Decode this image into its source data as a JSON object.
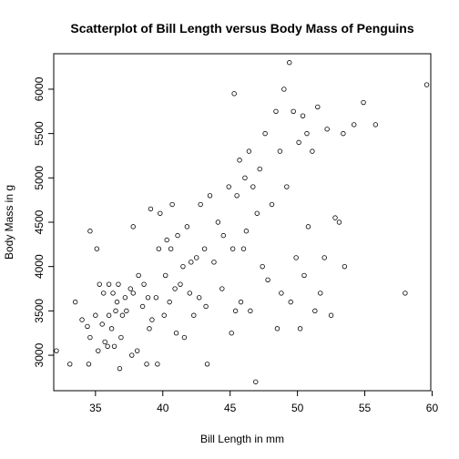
{
  "chart_data": {
    "type": "scatter",
    "title": "Scatterplot of Bill Length versus Body Mass of Penguins",
    "xlabel": "Bill Length in mm",
    "ylabel": "Body Mass in g",
    "xlim": [
      31.9,
      59.9
    ],
    "ylim": [
      2600,
      6400
    ],
    "xticks": [
      35,
      40,
      45,
      50,
      55,
      60
    ],
    "yticks": [
      3000,
      3500,
      4000,
      4500,
      5000,
      5500,
      6000
    ],
    "grid": false,
    "legend": "none",
    "point_color": "#000000",
    "points": [
      [
        32.1,
        3050
      ],
      [
        33.1,
        2900
      ],
      [
        33.5,
        3600
      ],
      [
        34.0,
        3400
      ],
      [
        34.4,
        3325
      ],
      [
        34.5,
        2900
      ],
      [
        34.6,
        3200
      ],
      [
        34.6,
        4400
      ],
      [
        35.0,
        3450
      ],
      [
        35.1,
        4200
      ],
      [
        35.2,
        3050
      ],
      [
        35.3,
        3800
      ],
      [
        35.5,
        3350
      ],
      [
        35.6,
        3700
      ],
      [
        35.7,
        3150
      ],
      [
        35.9,
        3100
      ],
      [
        36.0,
        3450
      ],
      [
        36.0,
        3800
      ],
      [
        36.2,
        3300
      ],
      [
        36.3,
        3700
      ],
      [
        36.4,
        3100
      ],
      [
        36.5,
        3500
      ],
      [
        36.6,
        3600
      ],
      [
        36.7,
        3800
      ],
      [
        36.8,
        2850
      ],
      [
        36.9,
        3200
      ],
      [
        37.0,
        3450
      ],
      [
        37.2,
        3650
      ],
      [
        37.3,
        3500
      ],
      [
        37.6,
        3750
      ],
      [
        37.7,
        3000
      ],
      [
        37.8,
        3700
      ],
      [
        37.8,
        4450
      ],
      [
        38.1,
        3050
      ],
      [
        38.2,
        3900
      ],
      [
        38.5,
        3550
      ],
      [
        38.6,
        3800
      ],
      [
        38.8,
        2900
      ],
      [
        38.9,
        3650
      ],
      [
        39.0,
        3300
      ],
      [
        39.1,
        4650
      ],
      [
        39.2,
        3400
      ],
      [
        39.5,
        3650
      ],
      [
        39.6,
        2900
      ],
      [
        39.7,
        4200
      ],
      [
        39.8,
        4600
      ],
      [
        40.1,
        3450
      ],
      [
        40.2,
        3900
      ],
      [
        40.3,
        4300
      ],
      [
        40.5,
        3600
      ],
      [
        40.6,
        4200
      ],
      [
        40.7,
        4700
      ],
      [
        40.9,
        3750
      ],
      [
        41.0,
        3250
      ],
      [
        41.1,
        4350
      ],
      [
        41.3,
        3800
      ],
      [
        41.5,
        4000
      ],
      [
        41.6,
        3200
      ],
      [
        41.8,
        4450
      ],
      [
        42.0,
        3700
      ],
      [
        42.1,
        4050
      ],
      [
        42.3,
        3450
      ],
      [
        42.5,
        4100
      ],
      [
        42.7,
        3650
      ],
      [
        42.8,
        4700
      ],
      [
        43.1,
        4200
      ],
      [
        43.2,
        3550
      ],
      [
        43.3,
        2900
      ],
      [
        43.5,
        4800
      ],
      [
        43.8,
        4050
      ],
      [
        44.1,
        4500
      ],
      [
        44.4,
        3750
      ],
      [
        44.5,
        4350
      ],
      [
        44.9,
        4900
      ],
      [
        45.1,
        3250
      ],
      [
        45.2,
        4200
      ],
      [
        45.3,
        5950
      ],
      [
        45.4,
        3500
      ],
      [
        45.5,
        4800
      ],
      [
        45.7,
        5200
      ],
      [
        45.8,
        3600
      ],
      [
        46.0,
        4200
      ],
      [
        46.1,
        5000
      ],
      [
        46.2,
        4400
      ],
      [
        46.4,
        5300
      ],
      [
        46.5,
        3500
      ],
      [
        46.7,
        4900
      ],
      [
        46.9,
        2700
      ],
      [
        47.0,
        4600
      ],
      [
        47.2,
        5100
      ],
      [
        47.4,
        4000
      ],
      [
        47.6,
        5500
      ],
      [
        47.8,
        3850
      ],
      [
        48.1,
        4700
      ],
      [
        48.4,
        5750
      ],
      [
        48.5,
        3300
      ],
      [
        48.7,
        5300
      ],
      [
        48.8,
        3700
      ],
      [
        49.0,
        6000
      ],
      [
        49.2,
        4900
      ],
      [
        49.4,
        6300
      ],
      [
        49.5,
        3600
      ],
      [
        49.7,
        5750
      ],
      [
        49.9,
        4100
      ],
      [
        50.1,
        5400
      ],
      [
        50.2,
        3300
      ],
      [
        50.4,
        5700
      ],
      [
        50.5,
        3900
      ],
      [
        50.7,
        5500
      ],
      [
        50.8,
        4450
      ],
      [
        51.1,
        5300
      ],
      [
        51.3,
        3500
      ],
      [
        51.5,
        5800
      ],
      [
        51.7,
        3700
      ],
      [
        52.0,
        4100
      ],
      [
        52.2,
        5550
      ],
      [
        52.5,
        3450
      ],
      [
        52.8,
        4550
      ],
      [
        53.1,
        4500
      ],
      [
        53.4,
        5500
      ],
      [
        53.5,
        4000
      ],
      [
        54.2,
        5600
      ],
      [
        54.9,
        5850
      ],
      [
        55.8,
        5600
      ],
      [
        58.0,
        3700
      ],
      [
        59.6,
        6050
      ]
    ]
  }
}
